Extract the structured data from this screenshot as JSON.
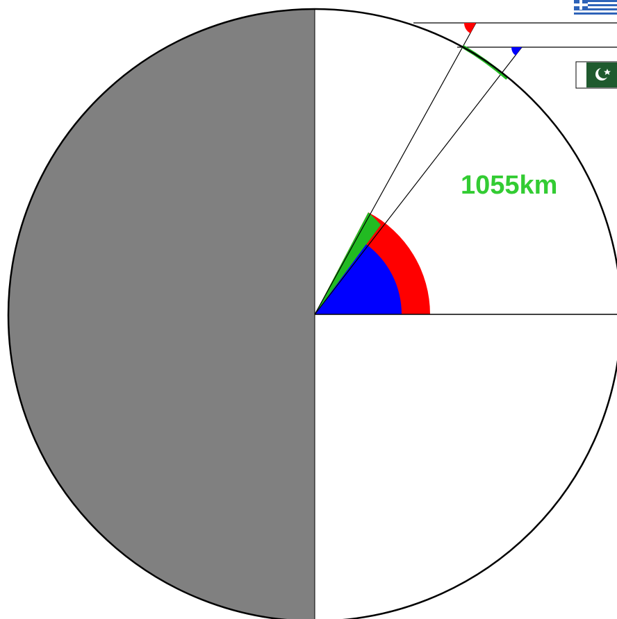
{
  "diagram": {
    "distance_label": "1055km",
    "flags": [
      {
        "country": "Greece",
        "icon": "greece-flag-icon"
      },
      {
        "country": "Pakistan",
        "icon": "pakistan-flag-icon"
      }
    ],
    "colors": {
      "night_side": "#808080",
      "red_angle": "#ff0000",
      "blue_angle": "#0000ff",
      "green_arc": "#22bb22",
      "label_green": "#33cc33",
      "outline": "#000000",
      "greece_blue": "#2e63b8",
      "pakistan_green": "#1f5a2e"
    }
  }
}
